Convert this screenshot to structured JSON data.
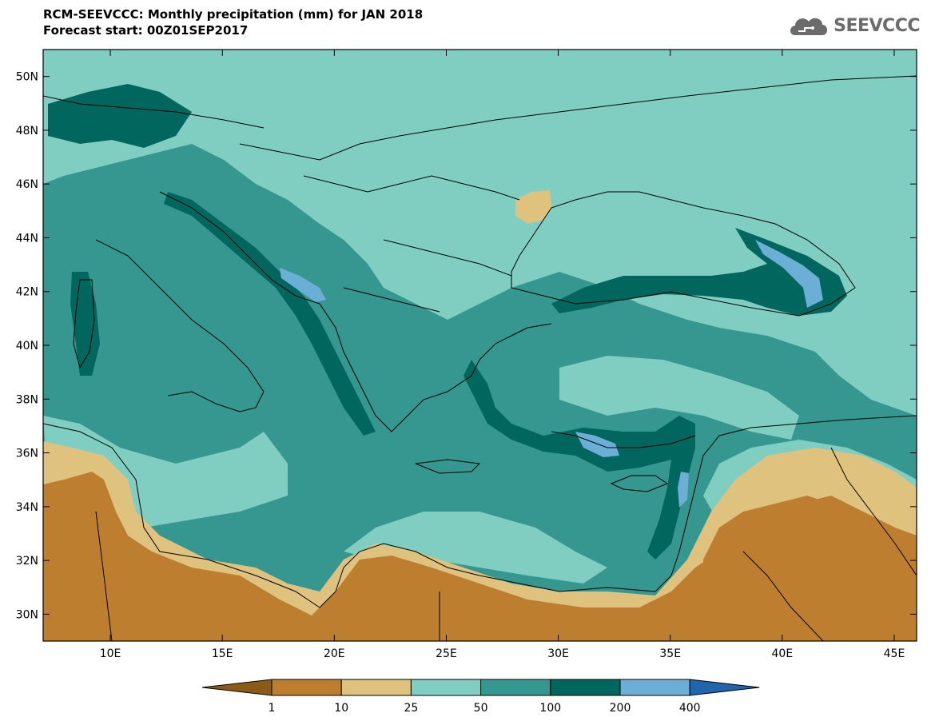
{
  "header": {
    "title": "RCM-SEEVCCC: Monthly precipitation (mm) for JAN 2018",
    "subtitle": "Forecast start: 00Z01SEP2017"
  },
  "logo": {
    "text": "SEEVCCC",
    "icon": "cloud-icon"
  },
  "map": {
    "lon_range": [
      7,
      46
    ],
    "lat_range": [
      29,
      51
    ],
    "x_ticks": [
      "10E",
      "15E",
      "20E",
      "25E",
      "30E",
      "35E",
      "40E",
      "45E"
    ],
    "y_ticks": [
      "30N",
      "32N",
      "34N",
      "36N",
      "38N",
      "40N",
      "42N",
      "44N",
      "46N",
      "48N",
      "50N"
    ]
  },
  "legend": {
    "labels": [
      "1",
      "10",
      "25",
      "50",
      "100",
      "200",
      "400"
    ],
    "colors": [
      "#8c5a17",
      "#bd7f2f",
      "#dfc27d",
      "#80cdc1",
      "#35978f",
      "#01665e",
      "#6baed6",
      "#2166ac"
    ]
  }
}
